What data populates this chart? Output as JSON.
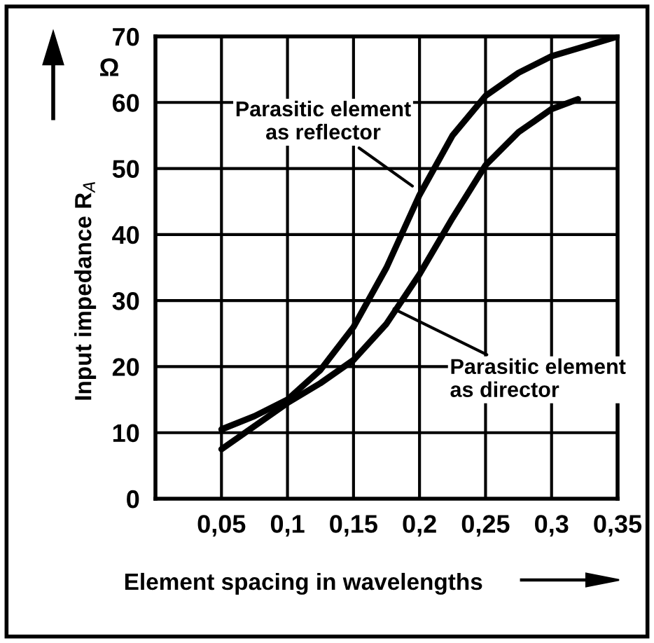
{
  "chart_data": {
    "type": "line",
    "xlabel": "Element spacing in wavelengths",
    "ylabel": "Input impedance R$_{A}$",
    "xlim": [
      0,
      0.35
    ],
    "ylim": [
      0,
      70
    ],
    "xticks": [
      {
        "value": 0.05,
        "label": "0,05"
      },
      {
        "value": 0.1,
        "label": "0,1"
      },
      {
        "value": 0.15,
        "label": "0,15"
      },
      {
        "value": 0.2,
        "label": "0,2"
      },
      {
        "value": 0.25,
        "label": "0,25"
      },
      {
        "value": 0.3,
        "label": "0,3"
      },
      {
        "value": 0.35,
        "label": "0,35"
      }
    ],
    "yticks": [
      0,
      10,
      20,
      30,
      40,
      50,
      60,
      70
    ],
    "grid": true,
    "marker": "none",
    "line_style": "solid",
    "series": [
      {
        "color": "#000000",
        "x": [
          0.05,
          0.075,
          0.1,
          0.125,
          0.15,
          0.175,
          0.2,
          0.225,
          0.25,
          0.275,
          0.3,
          0.325,
          0.35
        ],
        "values": [
          10.5,
          12.5,
          15,
          19.5,
          26,
          35,
          46,
          55,
          61,
          64.5,
          67,
          68.5,
          70
        ]
      },
      {
        "color": "#000000",
        "x": [
          0.05,
          0.075,
          0.1,
          0.125,
          0.15,
          0.175,
          0.2,
          0.225,
          0.25,
          0.275,
          0.3,
          0.32
        ],
        "values": [
          7.5,
          11,
          14.5,
          17.5,
          21,
          26.5,
          34,
          42.5,
          50.5,
          55.5,
          59,
          60.5
        ]
      }
    ],
    "annotations": [
      {
        "text": "Parasitic element\nas reflector",
        "x": 0.197,
        "y": 47
      },
      {
        "text": "Parasitic element\nas director",
        "x": 0.178,
        "y": 29
      },
      "Ω"
    ]
  }
}
